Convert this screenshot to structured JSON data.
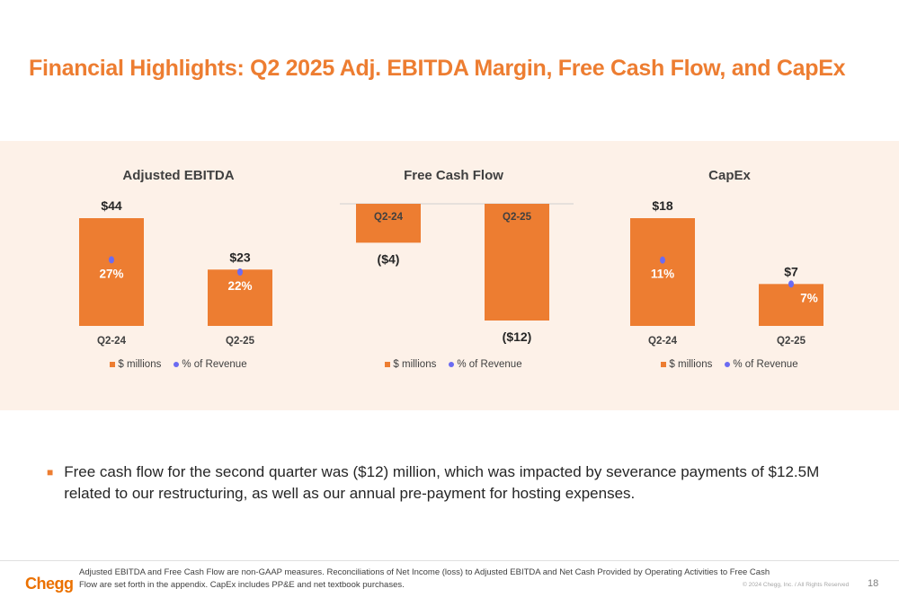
{
  "title": "Financial Highlights: Q2 2025 Adj. EBITDA Margin, Free Cash Flow, and CapEx",
  "colors": {
    "title": "#ED7D31",
    "bar": "#ED7D31",
    "dot": "#6B6BF2",
    "band": "#FDF1E8",
    "logo": "#EB7100"
  },
  "legend": {
    "bar_label": "$ millions",
    "dot_label": "% of Revenue"
  },
  "chart_data": [
    {
      "type": "bar",
      "title": "Adjusted EBITDA",
      "categories": [
        "Q2-24",
        "Q2-25"
      ],
      "values": [
        44,
        23
      ],
      "value_labels": [
        "$44",
        "$23"
      ],
      "pct_values": [
        27,
        22
      ],
      "pct_labels": [
        "27%",
        "22%"
      ],
      "series": [
        {
          "name": "$ millions",
          "values": [
            44,
            23
          ]
        },
        {
          "name": "% of Revenue",
          "values": [
            27,
            22
          ]
        }
      ],
      "ylim": [
        0,
        44
      ]
    },
    {
      "type": "bar",
      "title": "Free Cash Flow",
      "categories": [
        "Q2-24",
        "Q2-25"
      ],
      "values": [
        -4,
        -12
      ],
      "value_labels": [
        "($4)",
        "($12)"
      ],
      "series": [
        {
          "name": "$ millions",
          "values": [
            -4,
            -12
          ]
        }
      ],
      "ylim": [
        -12,
        0
      ]
    },
    {
      "type": "bar",
      "title": "CapEx",
      "categories": [
        "Q2-24",
        "Q2-25"
      ],
      "values": [
        18,
        7
      ],
      "value_labels": [
        "$18",
        "$7"
      ],
      "pct_values": [
        11,
        7
      ],
      "pct_labels": [
        "11%",
        "7%"
      ],
      "series": [
        {
          "name": "$ millions",
          "values": [
            18,
            7
          ]
        },
        {
          "name": "% of Revenue",
          "values": [
            11,
            7
          ]
        }
      ],
      "ylim": [
        0,
        18
      ]
    }
  ],
  "bullet": "Free cash flow for the second quarter was ($12) million, which was impacted by severance payments of $12.5M related to our restructuring, as well as our annual pre-payment for hosting expenses.",
  "footer": {
    "logo": "Chegg",
    "note": "Adjusted EBITDA and Free Cash Flow are non-GAAP measures. Reconciliations of Net Income (loss) to Adjusted EBITDA and Net Cash Provided by Operating Activities to Free Cash Flow are set forth in the appendix. CapEx includes PP&E and net textbook purchases.",
    "copyright": "© 2024 Chegg, Inc. / All Rights Reserved",
    "page": "18"
  }
}
